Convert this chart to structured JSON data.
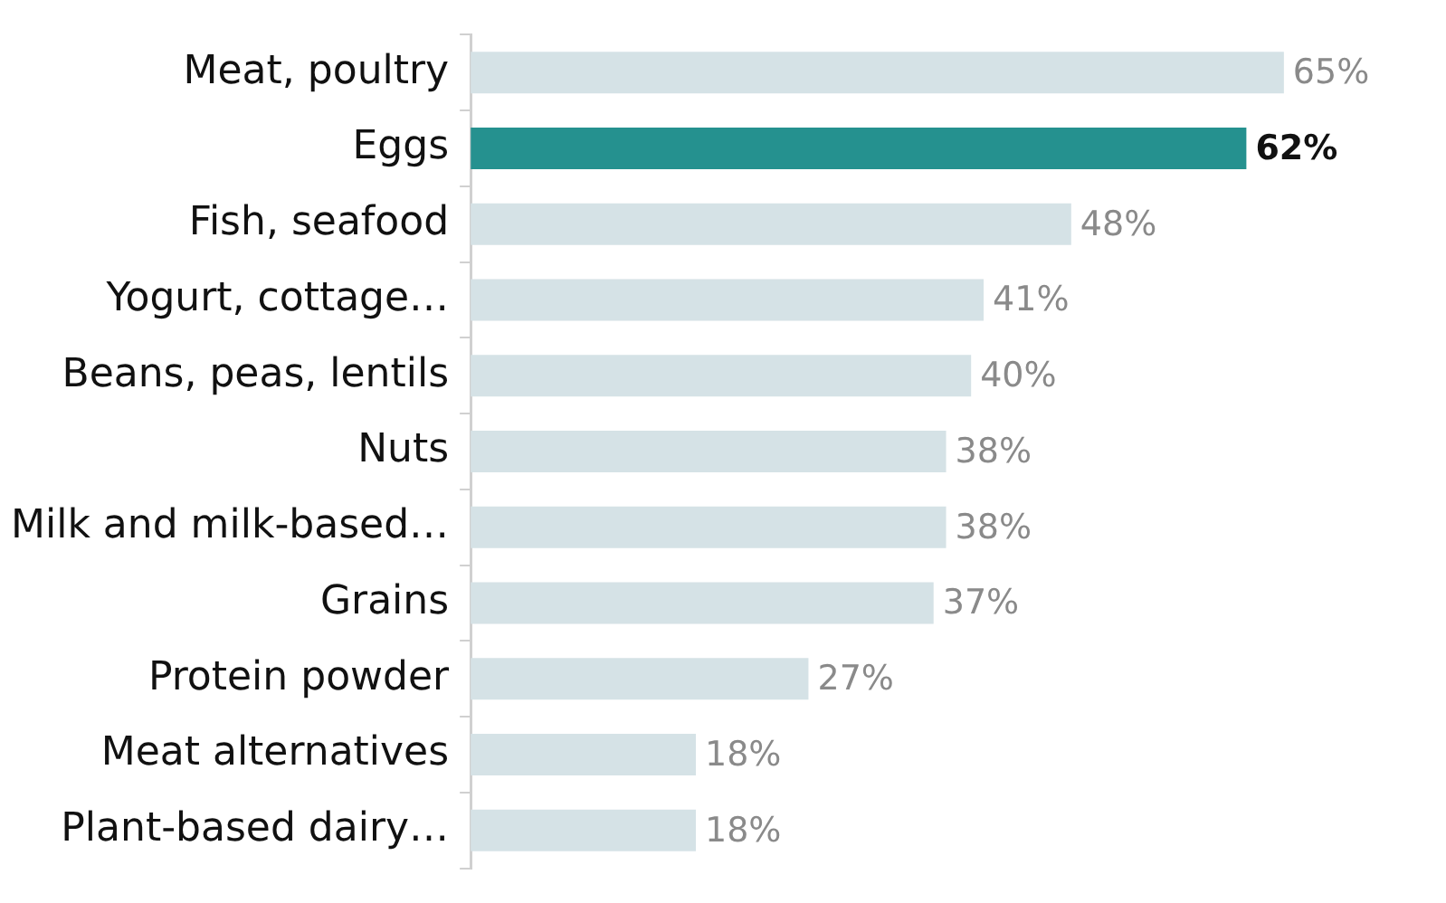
{
  "chart_data": {
    "type": "bar",
    "orientation": "horizontal",
    "categories": [
      "Meat, poultry",
      "Eggs",
      "Fish, seafood",
      "Yogurt, cottage…",
      "Beans, peas, lentils",
      "Nuts",
      "Milk and milk-based…",
      "Grains",
      "Protein powder",
      "Meat alternatives",
      "Plant-based dairy…"
    ],
    "values": [
      65,
      62,
      48,
      41,
      40,
      38,
      38,
      37,
      27,
      18,
      18
    ],
    "colors": [
      "#d5e2e6",
      "#25918f",
      "#d5e2e6",
      "#d5e2e6",
      "#d5e2e6",
      "#d5e2e6",
      "#d5e2e6",
      "#d5e2e6",
      "#d5e2e6",
      "#d5e2e6",
      "#d5e2e6"
    ],
    "value_labels": [
      "65%",
      "62%",
      "48%",
      "41%",
      "40%",
      "38%",
      "38%",
      "37%",
      "27%",
      "18%",
      "18%"
    ],
    "grid": false,
    "legend": false
  }
}
